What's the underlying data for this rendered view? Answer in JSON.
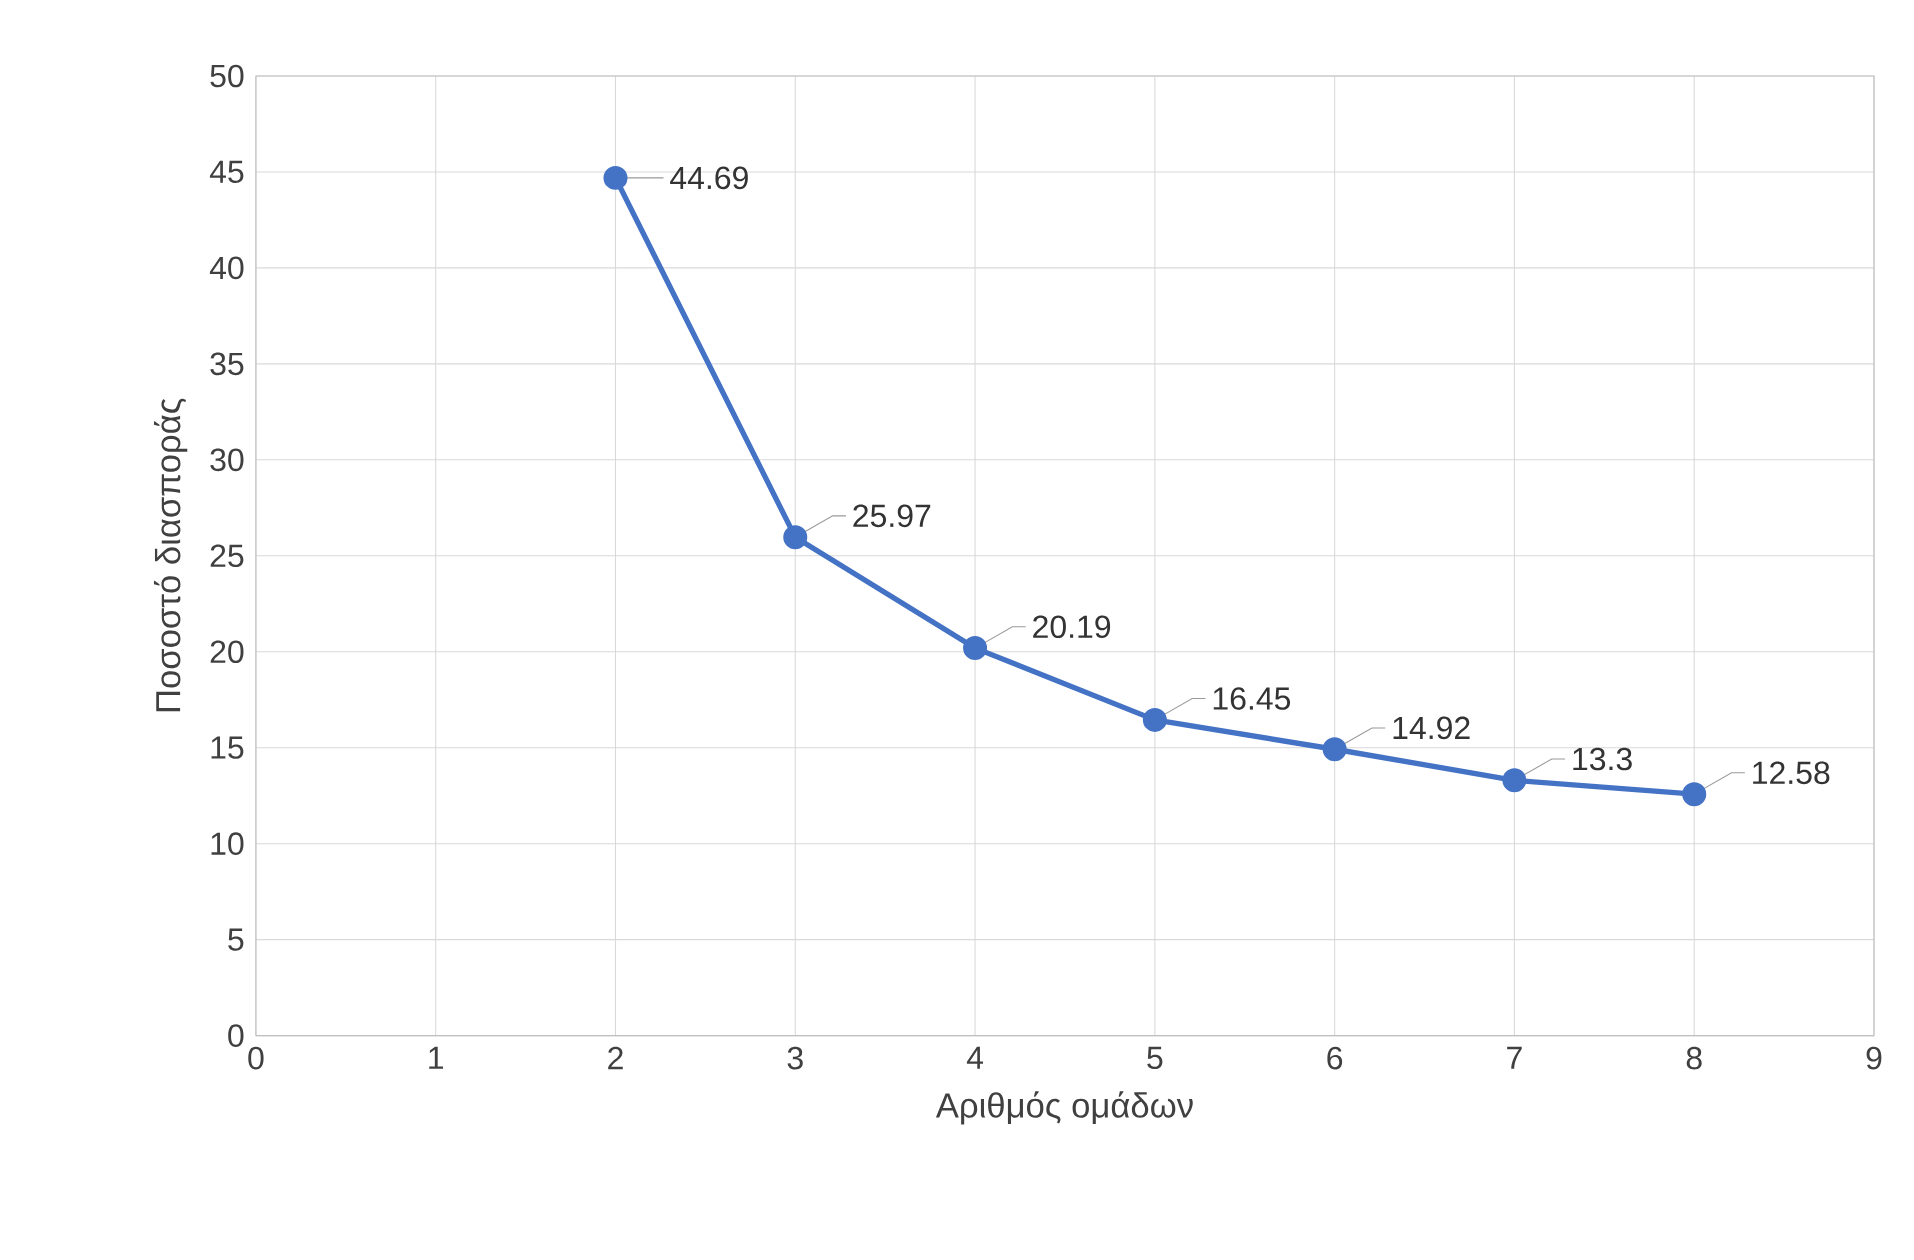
{
  "chart_data": {
    "type": "line",
    "xlabel": "Αριθμός ομάδων",
    "ylabel": "Ποσοστό διασποράς",
    "x": [
      2,
      3,
      4,
      5,
      6,
      7,
      8
    ],
    "values": [
      44.69,
      25.97,
      20.19,
      16.45,
      14.92,
      13.3,
      12.58
    ],
    "color": "#4472c4",
    "marker": "circle",
    "line_style": "solid",
    "data_labels": true,
    "grid": true,
    "xlim": [
      0,
      9
    ],
    "xticks": [
      0,
      1,
      2,
      3,
      4,
      5,
      6,
      7,
      8,
      9
    ],
    "ylim": [
      0,
      50
    ],
    "yticks": [
      0,
      5,
      10,
      15,
      20,
      25,
      30,
      35,
      40,
      45,
      50
    ]
  }
}
